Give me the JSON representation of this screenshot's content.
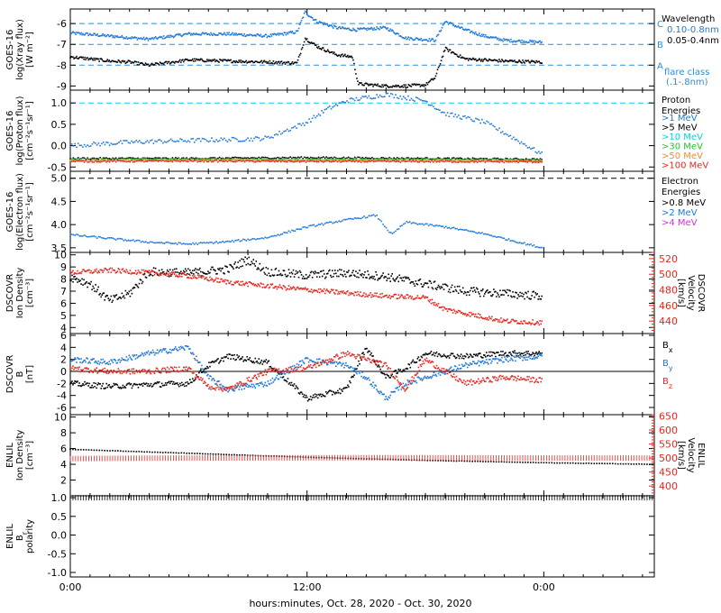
{
  "page": {
    "xaxis_title": "hours:minutes, Oct. 28, 2020 - Oct. 30, 2020",
    "x_ticks": [
      "0:00",
      "12:00",
      "0:00"
    ]
  },
  "colors": {
    "axis": "#000000",
    "blue": "#1f77d6",
    "cyan": "#00d2e6",
    "red": "#e8261e",
    "green": "#22c32e",
    "orange": "#ff8c1a",
    "magenta": "#e02ce0",
    "dash_cyan": "#3bbad6",
    "dash_blue": "#2a8fd8"
  },
  "chart_data": [
    {
      "id": "xray",
      "type": "scatter",
      "ylabel": [
        "GOES-16",
        "log(Xray flux)",
        "[W m⁻²]"
      ],
      "ylim": [
        -9.2,
        -5.3
      ],
      "y_ticks": [
        -6,
        -7,
        -8,
        -9
      ],
      "y_tick_labels": [
        "-6",
        "-7",
        "-8",
        "-9"
      ],
      "legend_title": "Wavelength",
      "legend": [
        {
          "label": "0.10-0.8nm",
          "color": "#1f77d6"
        },
        {
          "label": "0.05-0.4nm",
          "color": "#000000"
        }
      ],
      "flare_class": {
        "label": [
          "flare class",
          "(.1-.8nm)"
        ],
        "levels": [
          {
            "letter": "C",
            "y": -6
          },
          {
            "letter": "B",
            "y": -7
          },
          {
            "letter": "A",
            "y": -8
          }
        ]
      },
      "series": [
        {
          "color": "#1f77d6",
          "x": [
            0,
            2,
            4,
            6,
            8,
            10,
            11.5,
            11.9,
            12.5,
            13.5,
            14.5,
            16,
            17,
            18.5,
            19,
            20,
            21,
            22,
            23.9
          ],
          "y": [
            -6.45,
            -6.6,
            -6.75,
            -6.5,
            -6.5,
            -6.6,
            -6.4,
            -5.45,
            -5.9,
            -6.2,
            -6.3,
            -6.2,
            -6.7,
            -6.8,
            -5.9,
            -6.3,
            -6.6,
            -6.8,
            -6.9
          ]
        },
        {
          "color": "#000000",
          "x": [
            0,
            1,
            2,
            3,
            4,
            6,
            8,
            10,
            11.5,
            11.9,
            12.5,
            13.5,
            14.3,
            14.6,
            16,
            17,
            18,
            18.5,
            19,
            20,
            22,
            23.9
          ],
          "y": [
            -7.6,
            -7.7,
            -7.8,
            -7.85,
            -8.0,
            -7.75,
            -7.8,
            -7.85,
            -7.9,
            -6.7,
            -7.1,
            -7.5,
            -7.6,
            -8.9,
            -9.0,
            -9.0,
            -8.95,
            -8.6,
            -7.2,
            -7.7,
            -7.8,
            -7.85
          ]
        }
      ]
    },
    {
      "id": "proton",
      "type": "scatter",
      "ylabel": [
        "GOES-16",
        "log(Proton flux)",
        "[cm⁻²s⁻¹sr⁻¹]"
      ],
      "ylim": [
        -0.6,
        1.3
      ],
      "y_ticks": [
        1.0,
        0.5,
        0.0,
        -0.5
      ],
      "y_tick_labels": [
        "1.0",
        "0.5",
        "0.0",
        "-0.5"
      ],
      "legend_title": [
        "Proton",
        "Energies"
      ],
      "threshold": 1.0,
      "legend": [
        {
          "label": ">1 MeV",
          "color": "#1f77d6"
        },
        {
          "label": ">5 MeV",
          "color": "#000000"
        },
        {
          "label": ">10 MeV",
          "color": "#00d2e6"
        },
        {
          "label": ">30 MeV",
          "color": "#22c32e"
        },
        {
          "label": ">50 MeV",
          "color": "#ff8c1a"
        },
        {
          "label": ">100 MeV",
          "color": "#e8261e"
        }
      ],
      "series": [
        {
          "color": "#1f77d6",
          "x": [
            0,
            3,
            6,
            9,
            10,
            12,
            13,
            14,
            16,
            18,
            19,
            21,
            22,
            23.9
          ],
          "y": [
            0.0,
            0.08,
            0.12,
            0.15,
            0.18,
            0.55,
            0.85,
            1.05,
            1.2,
            1.05,
            0.75,
            0.55,
            0.3,
            -0.2
          ]
        },
        {
          "color": "#000000",
          "x": [
            0,
            6,
            12,
            18,
            23.9
          ],
          "y": [
            -0.3,
            -0.3,
            -0.28,
            -0.3,
            -0.32
          ]
        },
        {
          "color": "#22c32e",
          "x": [
            0,
            6,
            12,
            18,
            23.9
          ],
          "y": [
            -0.33,
            -0.32,
            -0.33,
            -0.32,
            -0.34
          ]
        },
        {
          "color": "#ff8c1a",
          "x": [
            0,
            6,
            12,
            18,
            23.9
          ],
          "y": [
            -0.35,
            -0.34,
            -0.35,
            -0.35,
            -0.36
          ]
        },
        {
          "color": "#e8261e",
          "x": [
            0,
            6,
            12,
            18,
            23.9
          ],
          "y": [
            -0.37,
            -0.36,
            -0.37,
            -0.37,
            -0.38
          ]
        }
      ]
    },
    {
      "id": "electron",
      "type": "scatter",
      "ylabel": [
        "GOES-16",
        "log(Electron flux)",
        "[cm⁻²s⁻¹sr⁻¹]"
      ],
      "ylim": [
        3.4,
        5.15
      ],
      "y_ticks": [
        5.0,
        4.5,
        4.0,
        3.5
      ],
      "y_tick_labels": [
        "5.0",
        "4.5",
        "4.0",
        "3.5"
      ],
      "legend_title": [
        "Electron",
        "Energies"
      ],
      "threshold": 5.0,
      "legend": [
        {
          "label": ">0.8 MeV",
          "color": "#000000"
        },
        {
          "label": ">2 MeV",
          "color": "#1f77d6"
        },
        {
          "label": ">4 MeV",
          "color": "#e02ce0"
        }
      ],
      "series": [
        {
          "color": "#1f77d6",
          "x": [
            0,
            2,
            4,
            6,
            8,
            10,
            12,
            14,
            15.5,
            16.3,
            17,
            19,
            21,
            23.9
          ],
          "y": [
            3.78,
            3.7,
            3.62,
            3.58,
            3.63,
            3.72,
            3.95,
            4.1,
            4.2,
            3.78,
            4.05,
            3.95,
            3.8,
            3.5
          ]
        }
      ]
    },
    {
      "id": "dscovr_density",
      "type": "scatter",
      "ylabel": [
        "DSCOVR",
        "Ion Density",
        "[cm⁻³]"
      ],
      "ylim": [
        3.5,
        10.2
      ],
      "y_ticks": [
        10,
        9,
        8,
        7,
        6,
        5,
        4
      ],
      "y_tick_labels": [
        "10",
        "9",
        "8",
        "7",
        "6",
        "5",
        "4"
      ],
      "y2label": [
        "DSCOVR",
        "Velocity",
        "[km/s]"
      ],
      "y2lim": [
        424,
        528
      ],
      "y2_ticks": [
        520,
        500,
        480,
        460,
        440
      ],
      "y2_tick_labels": [
        "520",
        "500",
        "480",
        "460",
        "440"
      ],
      "series": [
        {
          "color": "#000000",
          "axis": "left",
          "x": [
            0,
            1,
            2,
            3,
            4,
            6,
            8,
            9,
            10,
            12,
            14,
            16,
            18,
            20,
            22,
            23.9
          ],
          "y": [
            8.2,
            7.6,
            6.2,
            6.8,
            8.6,
            8.5,
            8.8,
            9.6,
            8.6,
            8.3,
            8.5,
            8.2,
            7.6,
            7.0,
            6.8,
            6.6
          ]
        },
        {
          "color": "#e8261e",
          "axis": "right",
          "x": [
            0,
            2,
            4,
            6,
            8,
            10,
            12,
            14,
            16,
            18,
            19,
            20,
            22,
            23.9
          ],
          "y": [
            502,
            505,
            502,
            498,
            490,
            485,
            480,
            476,
            472,
            470,
            455,
            450,
            440,
            438
          ]
        }
      ]
    },
    {
      "id": "dscovr_b",
      "type": "scatter",
      "ylabel": [
        "DSCOVR",
        "B",
        "[nT]"
      ],
      "ylim": [
        -7.2,
        6.3
      ],
      "y_ticks": [
        6,
        4,
        2,
        0,
        -2,
        -4,
        -6
      ],
      "y_tick_labels": [
        "6",
        "4",
        "2",
        "0",
        "-2",
        "-4",
        "-6"
      ],
      "zero_line": 0,
      "legend": [
        {
          "label": "B",
          "sub": "x",
          "color": "#000000"
        },
        {
          "label": "B",
          "sub": "y",
          "color": "#1f77d6"
        },
        {
          "label": "B",
          "sub": "z",
          "color": "#e8261e"
        }
      ],
      "series": [
        {
          "color": "#000000",
          "x": [
            0,
            2,
            4,
            6,
            7,
            8,
            10,
            12,
            14,
            15,
            16,
            17,
            18,
            20,
            22,
            23.9
          ],
          "y": [
            -2.0,
            -2.5,
            -2.2,
            -2.0,
            1.0,
            2.5,
            1.5,
            -4.5,
            -3.0,
            4.0,
            -1.0,
            0.5,
            3.0,
            2.5,
            3.0,
            3.0
          ]
        },
        {
          "color": "#1f77d6",
          "x": [
            0,
            2,
            4,
            6,
            7,
            8,
            10,
            12,
            14,
            15,
            16,
            17,
            18,
            20,
            22,
            23.9
          ],
          "y": [
            2.0,
            1.5,
            3.0,
            4.0,
            -1.0,
            -3.0,
            -2.0,
            2.0,
            1.0,
            -1.0,
            -4.5,
            -2.0,
            -1.0,
            1.0,
            2.0,
            2.5
          ]
        },
        {
          "color": "#e8261e",
          "x": [
            0,
            2,
            4,
            6,
            7,
            8,
            10,
            12,
            14,
            15,
            16,
            17,
            18,
            20,
            22,
            23.9
          ],
          "y": [
            0.5,
            0.0,
            0.0,
            0.5,
            -2.5,
            -3.0,
            0.0,
            0.5,
            3.0,
            2.0,
            1.0,
            -3.0,
            2.0,
            -2.0,
            -1.0,
            -1.5
          ]
        }
      ]
    },
    {
      "id": "enlil_density",
      "type": "scatter",
      "ylabel": [
        "ENLIL",
        "Ion Density",
        "[cm⁻³]"
      ],
      "ylim": [
        0,
        10.3
      ],
      "y_ticks": [
        10,
        8,
        6,
        4,
        2
      ],
      "y_tick_labels": [
        "10",
        "8",
        "6",
        "4",
        "2"
      ],
      "y2label": [
        "ENLIL",
        "Velocity",
        "[km/s]"
      ],
      "y2lim": [
        365,
        655
      ],
      "y2_ticks": [
        650,
        600,
        550,
        500,
        450,
        400
      ],
      "y2_tick_labels": [
        "650",
        "600",
        "550",
        "500",
        "450",
        "400"
      ],
      "series": [
        {
          "color": "#000000",
          "axis": "left",
          "x": [
            0,
            6,
            12,
            18,
            24,
            29.5
          ],
          "y": [
            5.9,
            5.4,
            4.9,
            4.5,
            4.2,
            4.0
          ]
        },
        {
          "color": "#e8261e",
          "axis": "right",
          "x": [
            0,
            6,
            12,
            18,
            24,
            29.5
          ],
          "y": [
            498,
            500,
            501,
            501,
            500,
            500
          ]
        }
      ]
    },
    {
      "id": "enlil_polarity",
      "type": "scatter",
      "ylabel": [
        "ENLIL",
        "B",
        "polarity"
      ],
      "ylabel_sub": "r",
      "ylim": [
        -1.12,
        1.05
      ],
      "y_ticks": [
        1.0,
        0.5,
        0.0,
        -0.5,
        -1.0
      ],
      "y_tick_labels": [
        "1.0",
        "0.5",
        "0.0",
        "-0.5",
        "-1.0"
      ],
      "series": [
        {
          "color": "#000000",
          "x": [
            0,
            29.5
          ],
          "y": [
            1.0,
            1.0
          ]
        }
      ]
    }
  ]
}
